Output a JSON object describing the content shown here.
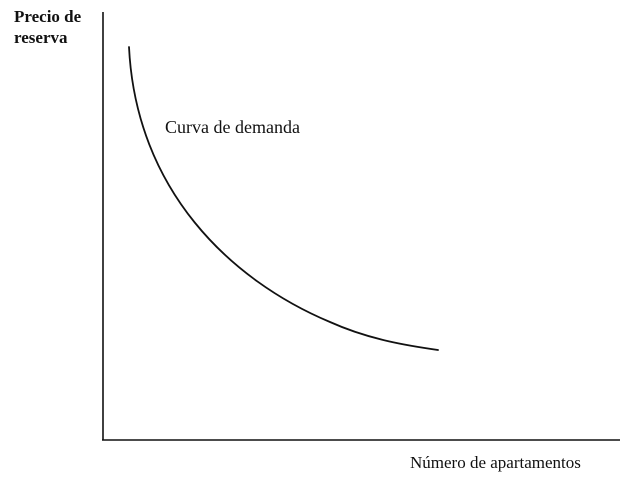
{
  "figure": {
    "y_axis_label_line1": "Precio de",
    "y_axis_label_line2": "reserva",
    "x_axis_label": "Número de apartamentos",
    "curve_label": "Curva de demanda"
  },
  "colors": {
    "ink": "#111111",
    "background": "#ffffff"
  }
}
